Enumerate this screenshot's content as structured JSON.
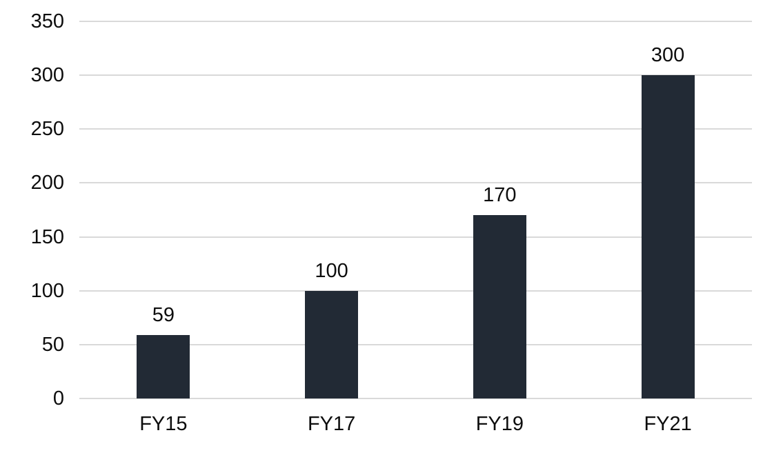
{
  "chart_data": {
    "type": "bar",
    "title": "",
    "xlabel": "",
    "ylabel": "",
    "categories": [
      "FY15",
      "FY17",
      "FY19",
      "FY21"
    ],
    "values": [
      59,
      100,
      170,
      300
    ],
    "data_labels": [
      "59",
      "100",
      "170",
      "300"
    ],
    "yticks": [
      0,
      50,
      100,
      150,
      200,
      250,
      300,
      350
    ],
    "ytick_labels": [
      "0",
      "50",
      "100",
      "150",
      "200",
      "250",
      "300",
      "350"
    ],
    "ylim": [
      0,
      350
    ],
    "grid": true,
    "gridline_orientation": "horizontal",
    "legend": false,
    "legend_position": "none",
    "colors": {
      "bar": "#222A35",
      "gridline": "#D9D9D9",
      "axis_text": "#0d0d0d",
      "data_label_text": "#0d0d0d",
      "background": "#FFFFFF"
    }
  }
}
